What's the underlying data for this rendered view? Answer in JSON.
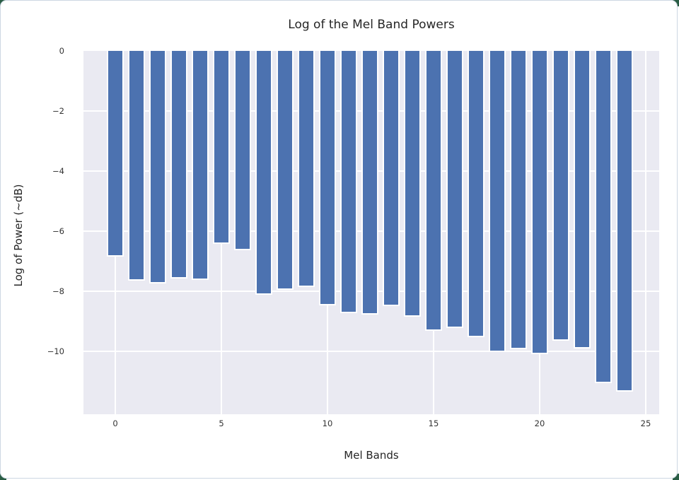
{
  "chart_data": {
    "type": "bar",
    "title": "Log of the Mel Band Powers",
    "xlabel": "Mel Bands",
    "ylabel": "Log of Power (~dB)",
    "categories": [
      0,
      1,
      2,
      3,
      4,
      5,
      6,
      7,
      8,
      9,
      10,
      11,
      12,
      13,
      14,
      15,
      16,
      17,
      18,
      19,
      20,
      21,
      22,
      23,
      24
    ],
    "values": [
      -6.85,
      -7.65,
      -7.75,
      -7.58,
      -7.62,
      -6.42,
      -6.64,
      -8.12,
      -7.95,
      -7.86,
      -8.47,
      -8.73,
      -8.78,
      -8.49,
      -8.86,
      -9.33,
      -9.22,
      -9.53,
      -10.04,
      -9.93,
      -10.09,
      -9.65,
      -9.9,
      -11.06,
      -11.34
    ],
    "xtick_labels": [
      "0",
      "5",
      "10",
      "15",
      "20",
      "25"
    ],
    "xtick_values": [
      0,
      5,
      10,
      15,
      20,
      25
    ],
    "ytick_labels": [
      "0",
      "−2",
      "−4",
      "−6",
      "−8",
      "−10"
    ],
    "ytick_values": [
      0,
      -2,
      -4,
      -6,
      -8,
      -10
    ],
    "ylim": [
      -12.1,
      0
    ],
    "xlim": [
      -1.5,
      25.6
    ],
    "grid": true,
    "legend": "none",
    "bar_color": "#4c72b0",
    "plot_bg": "#eaeaf2",
    "grid_color": "#ffffff",
    "text_color": "#262626",
    "border_color": "#cdd7e2",
    "corner_marker_color": "#2a5d44"
  }
}
